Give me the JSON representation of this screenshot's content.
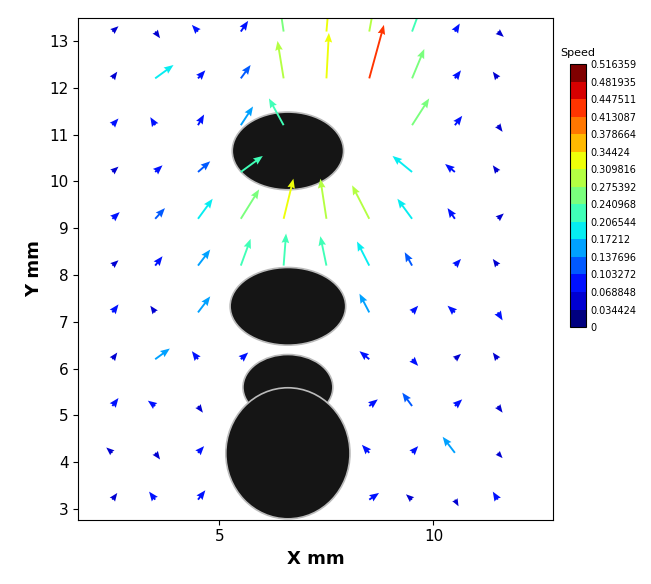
{
  "chart_data": {
    "type": "quiver",
    "xlabel": "X mm",
    "ylabel": "Y mm",
    "xlim": [
      1.7,
      12.8
    ],
    "ylim": [
      2.77,
      13.5
    ],
    "xticks": [
      5,
      10
    ],
    "yticks": [
      3,
      4,
      5,
      6,
      7,
      8,
      9,
      10,
      11,
      12,
      13
    ],
    "x": [
      2.5,
      3.5,
      4.5,
      5.5,
      6.5,
      7.5,
      8.5,
      9.5,
      10.5,
      11.5
    ],
    "y": [
      3.2,
      4.2,
      5.2,
      6.2,
      7.2,
      8.2,
      9.2,
      10.2,
      11.2,
      12.2,
      13.2
    ],
    "u": [
      [
        0.04,
        -0.05,
        0.06,
        null,
        null,
        null,
        0.08,
        -0.05,
        0.03,
        -0.04
      ],
      [
        -0.05,
        0.04,
        0.05,
        null,
        null,
        null,
        -0.06,
        0.05,
        -0.1,
        0.04
      ],
      [
        0.05,
        -0.06,
        0.04,
        null,
        null,
        null,
        0.07,
        -0.08,
        0.06,
        0.04
      ],
      [
        0.04,
        0.12,
        -0.05,
        0.06,
        null,
        null,
        -0.08,
        0.05,
        0.05,
        -0.04
      ],
      [
        0.05,
        -0.04,
        0.1,
        null,
        null,
        null,
        -0.08,
        0.05,
        -0.06,
        0.04
      ],
      [
        0.05,
        0.06,
        0.1,
        0.08,
        0.02,
        -0.05,
        -0.1,
        -0.06,
        0.05,
        -0.04
      ],
      [
        0.06,
        0.08,
        0.12,
        0.15,
        0.08,
        -0.05,
        -0.14,
        -0.12,
        -0.06,
        0.05
      ],
      [
        0.05,
        0.06,
        0.1,
        0.18,
        null,
        null,
        null,
        -0.16,
        -0.08,
        -0.04
      ],
      [
        0.05,
        -0.04,
        0.05,
        0.1,
        -0.12,
        null,
        null,
        0.14,
        0.06,
        0.04
      ],
      [
        0.04,
        0.15,
        0.06,
        0.08,
        -0.05,
        0.02,
        0.12,
        0.1,
        0.05,
        -0.04
      ],
      [
        0.05,
        0.04,
        -0.05,
        0.06,
        -0.04,
        0.03,
        0.06,
        0.08,
        0.04,
        0.05
      ]
    ],
    "v": [
      [
        0.05,
        0.06,
        0.07,
        null,
        null,
        null,
        0.05,
        0.04,
        -0.05,
        0.06
      ],
      [
        0.04,
        -0.05,
        0.05,
        null,
        null,
        null,
        0.06,
        0.05,
        0.12,
        -0.04
      ],
      [
        0.06,
        0.04,
        -0.05,
        null,
        null,
        null,
        0.05,
        0.1,
        0.05,
        -0.05
      ],
      [
        0.05,
        0.08,
        0.06,
        0.05,
        null,
        null,
        0.06,
        -0.05,
        0.04,
        0.05
      ],
      [
        0.06,
        0.05,
        0.12,
        null,
        null,
        null,
        0.14,
        0.05,
        0.05,
        -0.06
      ],
      [
        0.04,
        0.07,
        0.12,
        0.2,
        0.24,
        0.22,
        0.18,
        0.1,
        0.05,
        0.05
      ],
      [
        0.05,
        0.08,
        0.15,
        0.22,
        0.3,
        0.3,
        0.25,
        0.15,
        0.08,
        0.04
      ],
      [
        0.04,
        0.05,
        0.08,
        0.12,
        null,
        null,
        null,
        0.12,
        0.06,
        0.05
      ],
      [
        0.05,
        0.06,
        0.08,
        0.14,
        0.2,
        null,
        null,
        0.2,
        0.07,
        -0.05
      ],
      [
        0.05,
        0.1,
        0.06,
        0.1,
        0.28,
        0.34,
        0.4,
        0.22,
        0.06,
        0.05
      ],
      [
        0.04,
        -0.05,
        0.05,
        0.08,
        0.25,
        0.32,
        0.3,
        0.2,
        0.06,
        -0.04
      ]
    ],
    "droplets": [
      {
        "x": 6.6,
        "y": 10.65,
        "width": 2.6,
        "height": 1.66
      },
      {
        "x": 6.6,
        "y": 7.33,
        "width": 2.7,
        "height": 1.66
      },
      {
        "x": 6.6,
        "y": 5.6,
        "width": 2.1,
        "height": 1.4
      },
      {
        "x": 6.6,
        "y": 4.19,
        "width": 2.9,
        "height": 2.8
      }
    ],
    "colorbar": {
      "title": "Speed",
      "range": [
        0,
        0.516359
      ],
      "ticks": [
        0,
        0.034424,
        0.068848,
        0.103272,
        0.137696,
        0.17212,
        0.206544,
        0.240968,
        0.275392,
        0.309816,
        0.34424,
        0.378664,
        0.413087,
        0.447511,
        0.481935,
        0.516359
      ]
    }
  }
}
